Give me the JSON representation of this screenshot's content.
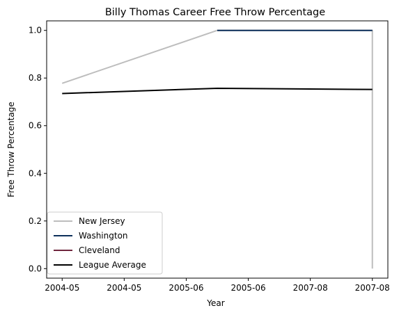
{
  "chart_data": {
    "type": "line",
    "title": "Billy Thomas  Career Free Throw Percentage",
    "xlabel": "Year",
    "ylabel": "Free Throw Percentage",
    "x_categories": [
      "2004-05",
      "2004-05",
      "2005-06",
      "2005-06",
      "2007-08",
      "2007-08"
    ],
    "xlim": [
      -0.1,
      2.1
    ],
    "ylim": [
      -0.04,
      1.04
    ],
    "yticks": [
      0.0,
      0.2,
      0.4,
      0.6,
      0.8,
      1.0
    ],
    "ytick_labels": [
      "0.0",
      "0.2",
      "0.4",
      "0.6",
      "0.8",
      "1.0"
    ],
    "grid": false,
    "legend_position": "lower-left",
    "series": [
      {
        "name": "New Jersey",
        "color": "#bdbdbd",
        "points": [
          [
            0,
            0.778
          ],
          [
            1,
            1.0
          ],
          [
            2,
            1.0
          ],
          [
            2,
            0.0
          ]
        ]
      },
      {
        "name": "Washington",
        "color": "#0c2f5a",
        "points": [
          [
            1,
            1.0
          ],
          [
            2,
            1.0
          ]
        ]
      },
      {
        "name": "Cleveland",
        "color": "#6f263d",
        "points": []
      },
      {
        "name": "League Average",
        "color": "#000000",
        "points": [
          [
            0,
            0.735
          ],
          [
            1,
            0.757
          ],
          [
            2,
            0.752
          ]
        ]
      }
    ]
  }
}
